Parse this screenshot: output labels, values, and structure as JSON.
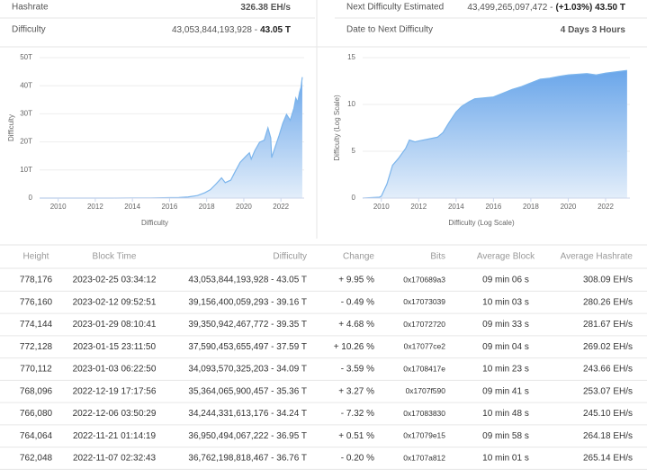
{
  "stats": [
    {
      "label": "Hashrate",
      "value": "326.38 EH/s"
    },
    {
      "label": "Difficulty",
      "value": "43,053,844,193,928 -",
      "emphasis": "43.05 T"
    },
    {
      "label": "Next Difficulty Estimated",
      "value": "43,499,265,097,472 -",
      "emphasis": "(+1.03%) 43.50 T"
    },
    {
      "label": "Date to Next Difficulty",
      "value": "4 Days 3 Hours"
    }
  ],
  "chart_data": [
    {
      "type": "area",
      "ylabel": "Difficulty",
      "xlabel": "Difficulty",
      "color": "#7cb5ec",
      "grid": true,
      "x": [
        2009,
        2012,
        2013,
        2014,
        2015,
        2016,
        2016.5,
        2017,
        2017.5,
        2017.9,
        2018.2,
        2018.5,
        2018.8,
        2019.0,
        2019.3,
        2019.5,
        2019.8,
        2020.1,
        2020.3,
        2020.4,
        2020.6,
        2020.85,
        2021.1,
        2021.3,
        2021.45,
        2021.5,
        2021.7,
        2021.9,
        2022.1,
        2022.3,
        2022.5,
        2022.7,
        2022.8,
        2022.9,
        2023.0,
        2023.08,
        2023.15
      ],
      "values": [
        0,
        0.002,
        0.01,
        0.05,
        0.04,
        0.16,
        0.2,
        0.4,
        0.9,
        1.9,
        3,
        5,
        7.2,
        5.5,
        6.4,
        9,
        12.7,
        14.8,
        16.1,
        13.9,
        17,
        19.9,
        20.6,
        25,
        21.4,
        14.4,
        18.4,
        22.3,
        26.6,
        29.8,
        27.7,
        32,
        35.6,
        34.1,
        37.6,
        39.4,
        43.05
      ],
      "xlim": [
        2009,
        2023.25
      ],
      "xticks": [
        2010,
        2012,
        2014,
        2016,
        2018,
        2020,
        2022
      ],
      "ylim": [
        0,
        50
      ],
      "yticks": [
        0,
        {
          "value": 10,
          "label": "10T"
        },
        {
          "value": 20,
          "label": "20T"
        },
        {
          "value": 30,
          "label": "30T"
        },
        {
          "value": 40,
          "label": "40T"
        },
        {
          "value": 50,
          "label": "50T"
        }
      ]
    },
    {
      "type": "area",
      "ylabel": "Difficulty (Log Scale)",
      "xlabel": "Difficulty (Log Scale)",
      "color": "#7cb5ec",
      "grid": true,
      "x": [
        2009,
        2009.9,
        2010.0,
        2010.3,
        2010.6,
        2010.9,
        2011.3,
        2011.5,
        2011.8,
        2012.0,
        2012.5,
        2013.0,
        2013.3,
        2013.6,
        2014.0,
        2014.3,
        2014.7,
        2015.0,
        2016.0,
        2016.5,
        2017.0,
        2017.5,
        2018.0,
        2018.5,
        2019.0,
        2019.5,
        2020.0,
        2021.0,
        2021.5,
        2022.0,
        2023.15
      ],
      "values": [
        0,
        0.1,
        0.2,
        1.5,
        3.5,
        4.2,
        5.3,
        6.2,
        6.0,
        6.1,
        6.3,
        6.5,
        7,
        8,
        9.2,
        9.8,
        10.3,
        10.6,
        10.8,
        11.2,
        11.6,
        11.9,
        12.3,
        12.7,
        12.8,
        13.0,
        13.15,
        13.3,
        13.15,
        13.35,
        13.63
      ],
      "xlim": [
        2009,
        2023.3
      ],
      "xticks": [
        2010,
        2012,
        2014,
        2016,
        2018,
        2020,
        2022
      ],
      "ylim": [
        0,
        15
      ],
      "yticks": [
        0,
        5,
        10,
        15
      ]
    }
  ],
  "table": {
    "header": [
      "Height",
      "Block Time",
      "Difficulty",
      "Change",
      "Bits",
      "Average Block",
      "Average Hashrate"
    ],
    "rows": [
      [
        "778,176",
        "2023-02-25 03:34:12",
        "43,053,844,193,928 - 43.05 T",
        "+ 9.95 %",
        "0x170689a3",
        "09 min 06 s",
        "308.09 EH/s"
      ],
      [
        "776,160",
        "2023-02-12 09:52:51",
        "39,156,400,059,293 - 39.16 T",
        "- 0.49 %",
        "0x17073039",
        "10 min 03 s",
        "280.26 EH/s"
      ],
      [
        "774,144",
        "2023-01-29 08:10:41",
        "39,350,942,467,772 - 39.35 T",
        "+ 4.68 %",
        "0x17072720",
        "09 min 33 s",
        "281.67 EH/s"
      ],
      [
        "772,128",
        "2023-01-15 23:11:50",
        "37,590,453,655,497 - 37.59 T",
        "+ 10.26 %",
        "0x17077ce2",
        "09 min 04 s",
        "269.02 EH/s"
      ],
      [
        "770,112",
        "2023-01-03 06:22:50",
        "34,093,570,325,203 - 34.09 T",
        "- 3.59 %",
        "0x1708417e",
        "10 min 23 s",
        "243.66 EH/s"
      ],
      [
        "768,096",
        "2022-12-19 17:17:56",
        "35,364,065,900,457 - 35.36 T",
        "+ 3.27 %",
        "0x1707f590",
        "09 min 41 s",
        "253.07 EH/s"
      ],
      [
        "766,080",
        "2022-12-06 03:50:29",
        "34,244,331,613,176 - 34.24 T",
        "- 7.32 %",
        "0x17083830",
        "10 min 48 s",
        "245.10 EH/s"
      ],
      [
        "764,064",
        "2022-11-21 01:14:19",
        "36,950,494,067,222 - 36.95 T",
        "+ 0.51 %",
        "0x17079e15",
        "09 min 58 s",
        "264.18 EH/s"
      ],
      [
        "762,048",
        "2022-11-07 02:32:43",
        "36,762,198,818,467 - 36.76 T",
        "- 0.20 %",
        "0x1707a812",
        "10 min 01 s",
        "265.14 EH/s"
      ]
    ]
  }
}
